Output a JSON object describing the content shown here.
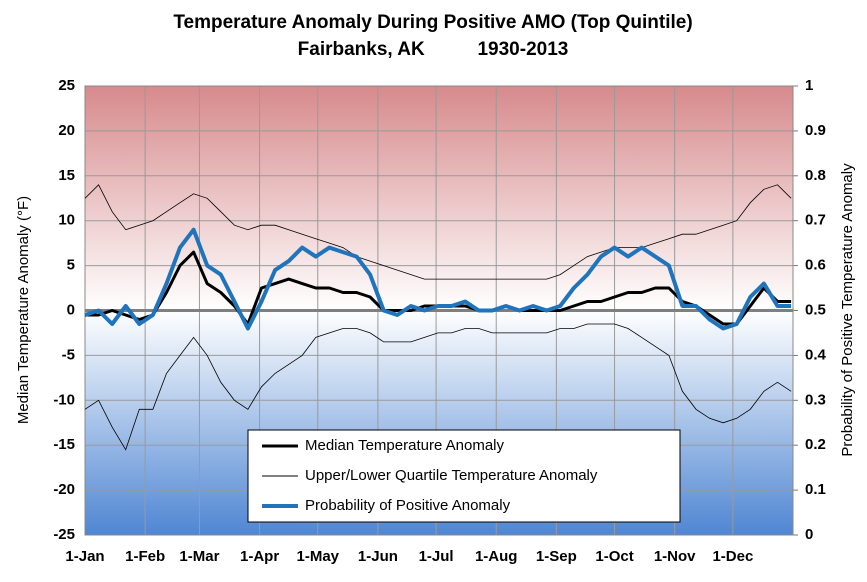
{
  "chart_data": {
    "type": "line",
    "title": "Temperature Anomaly During Positive AMO (Top Quintile)",
    "subtitle": "Fairbanks, AK          1930-2013",
    "y_label": "Median Temperature Anomaly (°F)",
    "y2_label": "Probability of Positive Temperature Anomaly",
    "x": [
      0,
      7,
      14,
      21,
      28,
      35,
      42,
      49,
      56,
      63,
      70,
      77,
      84,
      91,
      98,
      105,
      112,
      119,
      126,
      133,
      140,
      147,
      154,
      161,
      168,
      175,
      182,
      189,
      196,
      203,
      210,
      217,
      224,
      231,
      238,
      245,
      252,
      259,
      266,
      273,
      280,
      287,
      294,
      301,
      308,
      315,
      322,
      329,
      336,
      343,
      350,
      357,
      364
    ],
    "xlim": [
      0,
      365
    ],
    "xticks": [
      {
        "value": 0,
        "label": "1-Jan"
      },
      {
        "value": 31,
        "label": "1-Feb"
      },
      {
        "value": 59,
        "label": "1-Mar"
      },
      {
        "value": 90,
        "label": "1-Apr"
      },
      {
        "value": 120,
        "label": "1-May"
      },
      {
        "value": 151,
        "label": "1-Jun"
      },
      {
        "value": 181,
        "label": "1-Jul"
      },
      {
        "value": 212,
        "label": "1-Aug"
      },
      {
        "value": 243,
        "label": "1-Sep"
      },
      {
        "value": 273,
        "label": "1-Oct"
      },
      {
        "value": 304,
        "label": "1-Nov"
      },
      {
        "value": 334,
        "label": "1-Dec"
      }
    ],
    "ylim": [
      -25,
      25
    ],
    "yticks": [
      -25,
      -20,
      -15,
      -10,
      -5,
      0,
      5,
      10,
      15,
      20,
      25
    ],
    "y2lim": [
      0,
      1
    ],
    "y2ticks": [
      0,
      0.1,
      0.2,
      0.3,
      0.4,
      0.5,
      0.6,
      0.7,
      0.8,
      0.9,
      1
    ],
    "grid": true,
    "series": [
      {
        "name": "Median Temperature Anomaly",
        "color": "#000000",
        "values": [
          -0.5,
          -0.5,
          0,
          -0.5,
          -1,
          -0.5,
          2,
          5,
          6.5,
          3,
          2,
          0.5,
          -1.5,
          2.5,
          3,
          3.5,
          3,
          2.5,
          2.5,
          2,
          2,
          1.5,
          0,
          0,
          0,
          0.5,
          0.5,
          0.5,
          0.5,
          0,
          0,
          0.5,
          0,
          0,
          0,
          0,
          0.5,
          1,
          1,
          1.5,
          2,
          2,
          2.5,
          2.5,
          1,
          0.5,
          -0.5,
          -1.5,
          -1.5,
          0.5,
          2.5,
          1,
          1
        ]
      },
      {
        "name": "Upper/Lower Quartile Temperature Anomaly",
        "color": "#000000",
        "upper": [
          12.5,
          14,
          11,
          9,
          9.5,
          10,
          11,
          12,
          13,
          12.5,
          11,
          9.5,
          9,
          9.5,
          9.5,
          9,
          8.5,
          8,
          7.5,
          7,
          6,
          5.5,
          5,
          4.5,
          4,
          3.5,
          3.5,
          3.5,
          3.5,
          3.5,
          3.5,
          3.5,
          3.5,
          3.5,
          3.5,
          4,
          5,
          6,
          6.5,
          7,
          7,
          7,
          7.5,
          8,
          8.5,
          8.5,
          9,
          9.5,
          10,
          12,
          13.5,
          14,
          12.5
        ],
        "lower": [
          -11,
          -10,
          -13,
          -15.5,
          -11,
          -11,
          -7,
          -5,
          -3,
          -5,
          -8,
          -10,
          -11,
          -8.5,
          -7,
          -6,
          -5,
          -3,
          -2.5,
          -2,
          -2,
          -2.5,
          -3.5,
          -3.5,
          -3.5,
          -3,
          -2.5,
          -2.5,
          -2,
          -2,
          -2.5,
          -2.5,
          -2.5,
          -2.5,
          -2.5,
          -2,
          -2,
          -1.5,
          -1.5,
          -1.5,
          -2,
          -3,
          -4,
          -5,
          -9,
          -11,
          -12,
          -12.5,
          -12,
          -11,
          -9,
          -8,
          -9
        ]
      },
      {
        "name": "Probability of Positive Anomaly",
        "color": "#1f74bb",
        "axis": "y2",
        "values": [
          0.49,
          0.5,
          0.47,
          0.51,
          0.47,
          0.49,
          0.56,
          0.64,
          0.68,
          0.6,
          0.58,
          0.52,
          0.46,
          0.52,
          0.59,
          0.61,
          0.64,
          0.62,
          0.64,
          0.63,
          0.62,
          0.58,
          0.5,
          0.49,
          0.51,
          0.5,
          0.51,
          0.51,
          0.52,
          0.5,
          0.5,
          0.51,
          0.5,
          0.51,
          0.5,
          0.51,
          0.55,
          0.58,
          0.62,
          0.64,
          0.62,
          0.64,
          0.62,
          0.6,
          0.51,
          0.51,
          0.48,
          0.46,
          0.47,
          0.53,
          0.56,
          0.51,
          0.51
        ]
      }
    ]
  }
}
